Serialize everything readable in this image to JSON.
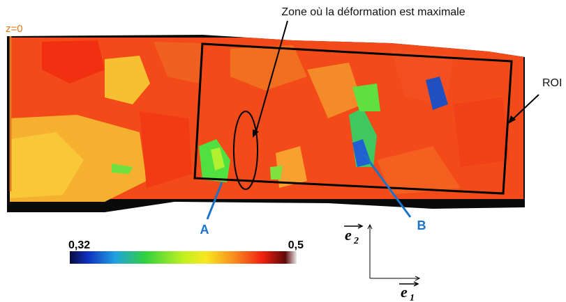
{
  "annotations": {
    "zone": "Zone où la déformation est maximale",
    "z0": "z=0",
    "roi": "ROI",
    "a": "A",
    "b": "B"
  },
  "colorbar": {
    "min_label": "0,32",
    "max_label": "0,5"
  },
  "axes": {
    "e2": {
      "base": "e",
      "index": "2"
    },
    "e1": {
      "base": "e",
      "index": "1"
    }
  }
}
